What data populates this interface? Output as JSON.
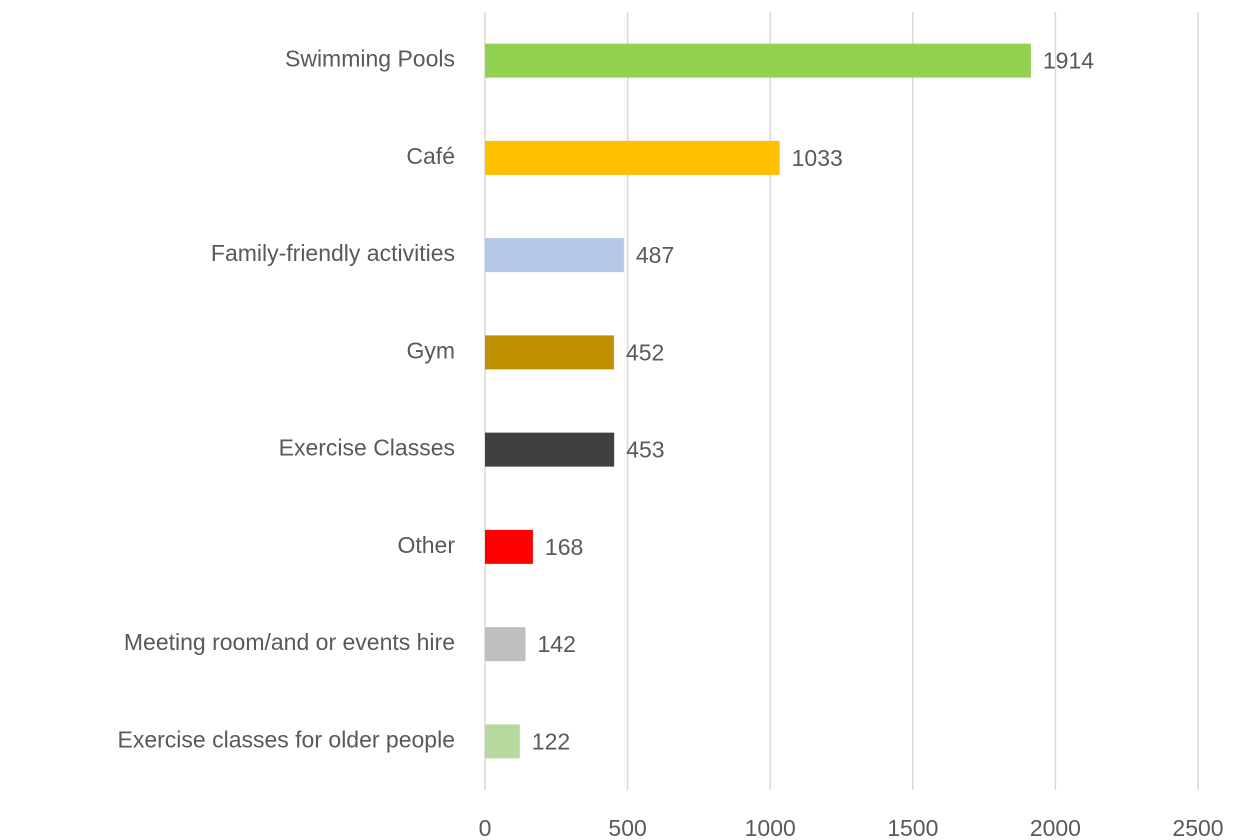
{
  "chart_data": {
    "type": "barh",
    "categories": [
      "Swimming Pools",
      "Café",
      "Family-friendly activities",
      "Gym",
      "Exercise Classes",
      "Other",
      "Meeting room/and or events hire",
      "Exercise classes for older people"
    ],
    "values": [
      1914,
      1033,
      487,
      452,
      453,
      168,
      142,
      122
    ],
    "colors": [
      "#92d050",
      "#ffc000",
      "#b4c7e7",
      "#bf9000",
      "#404040",
      "#ff0000",
      "#bfbfbf",
      "#b6d99f"
    ],
    "xlim": [
      0,
      2500
    ],
    "xticks": [
      0,
      500,
      1000,
      1500,
      2000,
      2500
    ],
    "grid": true
  }
}
